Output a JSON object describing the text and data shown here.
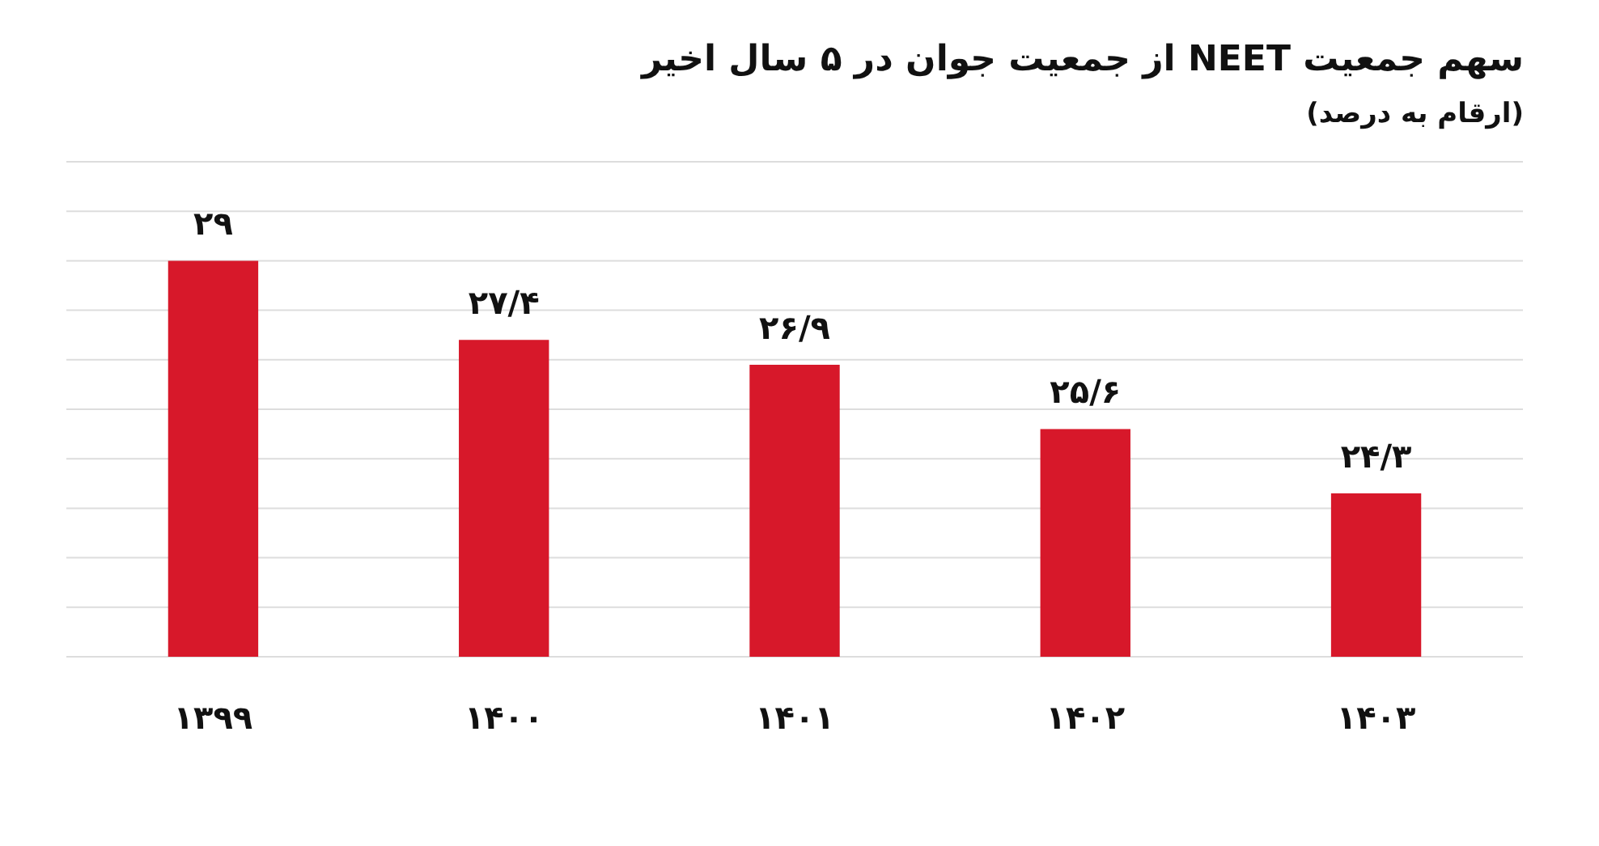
{
  "chart_data": {
    "type": "bar",
    "title": "سهم جمعیت NEET از جمعیت جوان در ۵ سال اخیر",
    "subtitle": "(ارقام به درصد)",
    "categories": [
      "۱۳۹۹",
      "۱۴۰۰",
      "۱۴۰۱",
      "۱۴۰۲",
      "۱۴۰۳"
    ],
    "values": [
      29,
      27.4,
      26.9,
      25.6,
      24.3
    ],
    "value_labels": [
      "۲۹",
      "۲۷/۴",
      "۲۶/۹",
      "۲۵/۶",
      "۲۴/۳"
    ],
    "color": "#d7182a",
    "ylim": [
      21,
      31
    ],
    "yticks": [
      {
        "value": 21,
        "label": null
      },
      {
        "value": 22,
        "label": null
      },
      {
        "value": 23,
        "label": null
      },
      {
        "value": 24,
        "label": null
      },
      {
        "value": 25,
        "label": null
      },
      {
        "value": 26,
        "label": null
      },
      {
        "value": 27,
        "label": null
      },
      {
        "value": 28,
        "label": null
      },
      {
        "value": 29,
        "label": null
      },
      {
        "value": 30,
        "label": null
      },
      {
        "value": 31,
        "label": null
      }
    ],
    "grid": "y",
    "tick_labels": "x"
  }
}
